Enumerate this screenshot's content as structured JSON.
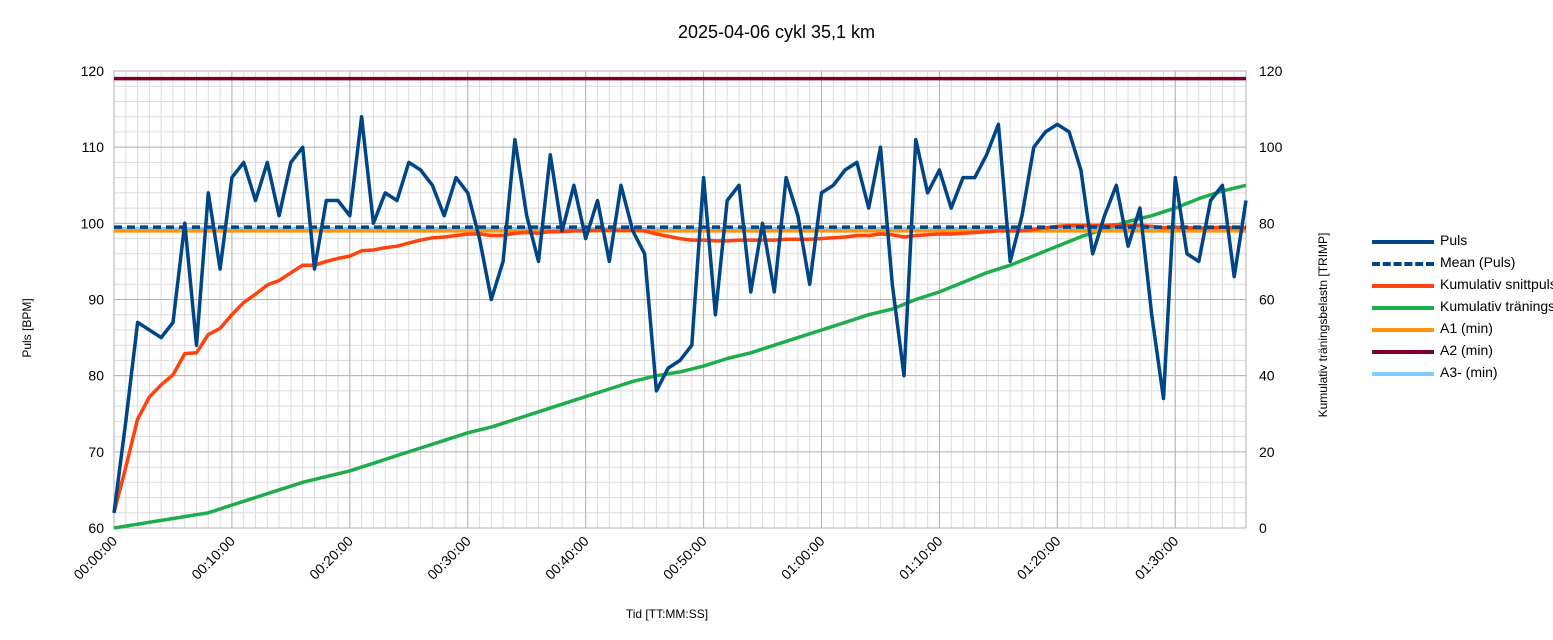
{
  "title": "2025-04-06 cykl 35,1 km",
  "chart_data": {
    "type": "line",
    "title": "2025-04-06 cykl 35,1 km",
    "xlabel": "Tid [TT:MM:SS]",
    "ylabel_left": "Puls [BPM]",
    "ylabel_right": "Kumulativ träningsbelastn [TRIMP]",
    "x_unit": "minutes",
    "xlim": [
      0,
      96
    ],
    "ylim_left": [
      60,
      120
    ],
    "ylim_right": [
      0,
      120
    ],
    "x_ticks": [
      "00:00:00",
      "00:10:00",
      "00:20:00",
      "00:30:00",
      "00:40:00",
      "00:50:00",
      "01:00:00",
      "01:10:00",
      "01:20:00",
      "01:30:00"
    ],
    "x_tick_minutes": [
      0,
      10,
      20,
      30,
      40,
      50,
      60,
      70,
      80,
      90
    ],
    "y_ticks_left": [
      60,
      70,
      80,
      90,
      100,
      110,
      120
    ],
    "y_ticks_right": [
      0,
      20,
      40,
      60,
      80,
      100,
      120
    ],
    "grid": true,
    "legend_position": "right",
    "series": [
      {
        "name": "Puls",
        "axis": "left",
        "color": "#004586",
        "style": "solid",
        "x": [
          0,
          1,
          2,
          3,
          4,
          5,
          6,
          7,
          8,
          9,
          10,
          11,
          12,
          13,
          14,
          15,
          16,
          17,
          18,
          19,
          20,
          21,
          22,
          23,
          24,
          25,
          26,
          27,
          28,
          29,
          30,
          31,
          32,
          33,
          34,
          35,
          36,
          37,
          38,
          39,
          40,
          41,
          42,
          43,
          44,
          45,
          46,
          47,
          48,
          49,
          50,
          51,
          52,
          53,
          54,
          55,
          56,
          57,
          58,
          59,
          60,
          61,
          62,
          63,
          64,
          65,
          66,
          67,
          68,
          69,
          70,
          71,
          72,
          73,
          74,
          75,
          76,
          77,
          78,
          79,
          80,
          81,
          82,
          83,
          84,
          85,
          86,
          87,
          88,
          89,
          90,
          91,
          92,
          93,
          94,
          95,
          96
        ],
        "y": [
          62,
          74,
          87,
          86,
          85,
          87,
          100,
          84,
          104,
          94,
          106,
          108,
          103,
          108,
          101,
          108,
          110,
          94,
          103,
          103,
          101,
          114,
          100,
          104,
          103,
          108,
          107,
          105,
          101,
          106,
          104,
          98,
          90,
          95,
          111,
          101,
          95,
          109,
          99,
          105,
          98,
          103,
          95,
          105,
          99,
          96,
          78,
          81,
          82,
          84,
          106,
          88,
          103,
          105,
          91,
          100,
          91,
          106,
          101,
          92,
          104,
          105,
          107,
          108,
          102,
          110,
          92,
          80,
          111,
          104,
          107,
          102,
          106,
          106,
          109,
          113,
          95,
          101,
          110,
          112,
          113,
          112,
          107,
          96,
          101,
          105,
          97,
          102,
          88,
          77,
          106,
          96,
          95,
          103,
          105,
          93,
          103
        ]
      },
      {
        "name": "Mean (Puls)",
        "axis": "left",
        "color": "#004586",
        "style": "dashed",
        "x": [
          0,
          96
        ],
        "y": [
          99.5,
          99.5
        ]
      },
      {
        "name": "Kumulativ snittpuls",
        "axis": "left",
        "color": "#ff420e",
        "style": "solid",
        "x": [
          0,
          1,
          2,
          3,
          4,
          5,
          6,
          7,
          8,
          9,
          10,
          11,
          12,
          13,
          14,
          15,
          16,
          17,
          18,
          19,
          20,
          21,
          22,
          23,
          24,
          25,
          26,
          27,
          28,
          29,
          30,
          31,
          32,
          33,
          34,
          35,
          36,
          37,
          38,
          39,
          40,
          41,
          42,
          43,
          44,
          45,
          46,
          47,
          48,
          49,
          50,
          51,
          52,
          53,
          54,
          55,
          56,
          57,
          58,
          59,
          60,
          61,
          62,
          63,
          64,
          65,
          66,
          67,
          68,
          69,
          70,
          71,
          72,
          73,
          74,
          75,
          76,
          77,
          78,
          79,
          80,
          81,
          82,
          83,
          84,
          85,
          86,
          87,
          88,
          89,
          90,
          91,
          92,
          93,
          94,
          95,
          96
        ],
        "y": [
          62,
          68,
          74.3,
          77.2,
          78.8,
          80.1,
          82.9,
          83,
          85.4,
          86.2,
          88,
          89.6,
          90.7,
          91.9,
          92.5,
          93.5,
          94.5,
          94.5,
          95,
          95.4,
          95.7,
          96.4,
          96.5,
          96.8,
          97,
          97.4,
          97.8,
          98.1,
          98.2,
          98.4,
          98.6,
          98.6,
          98.4,
          98.4,
          98.7,
          98.8,
          98.7,
          98.9,
          98.9,
          99,
          99,
          99.1,
          99.1,
          99.1,
          99.1,
          99,
          98.6,
          98.3,
          98,
          97.8,
          97.8,
          97.7,
          97.7,
          97.8,
          97.8,
          97.8,
          97.8,
          97.9,
          97.9,
          97.9,
          98,
          98.1,
          98.2,
          98.4,
          98.4,
          98.6,
          98.5,
          98.2,
          98.4,
          98.5,
          98.6,
          98.6,
          98.7,
          98.8,
          98.9,
          99,
          99,
          99,
          99.2,
          99.4,
          99.6,
          99.7,
          99.7,
          99.7,
          99.7,
          99.8,
          99.7,
          99.7,
          99.6,
          99.4,
          99.5,
          99.4,
          99.4,
          99.4,
          99.5,
          99.4,
          99.4
        ]
      },
      {
        "name": "Kumulativ träningsbelastn",
        "axis": "right",
        "color": "#1dad4a",
        "style": "solid",
        "x": [
          0,
          2,
          4,
          6,
          7,
          8,
          10,
          12,
          14,
          16,
          18,
          20,
          21,
          22,
          24,
          26,
          28,
          30,
          32,
          34,
          36,
          38,
          40,
          42,
          44,
          46,
          48,
          50,
          52,
          54,
          56,
          58,
          60,
          62,
          64,
          66,
          68,
          70,
          72,
          74,
          76,
          78,
          80,
          82,
          84,
          86,
          88,
          90,
          92,
          94,
          96
        ],
        "y": [
          0,
          1,
          2,
          3,
          3.5,
          4,
          6,
          8,
          10,
          12,
          13.5,
          15,
          16,
          17,
          19,
          21,
          23,
          25,
          26.5,
          28.5,
          30.5,
          32.5,
          34.5,
          36.5,
          38.5,
          40,
          41,
          42.5,
          44.5,
          46,
          48,
          50,
          52,
          54,
          56,
          57.5,
          60,
          62,
          64.5,
          67,
          69,
          71.5,
          74,
          76.5,
          78.5,
          80.5,
          82,
          84,
          86.5,
          88.5,
          90
        ]
      },
      {
        "name": "A1 (min)",
        "axis": "left",
        "color": "#ff950e",
        "style": "solid",
        "x": [
          0,
          96
        ],
        "y": [
          99,
          99
        ]
      },
      {
        "name": "A2 (min)",
        "axis": "left",
        "color": "#7e0021",
        "style": "solid",
        "x": [
          0,
          96
        ],
        "y": [
          119,
          119
        ]
      },
      {
        "name": "A3- (min)",
        "axis": "left",
        "color": "#83caff",
        "style": "solid",
        "x": [
          0,
          96
        ],
        "y": [
          99.3,
          99.3
        ]
      }
    ]
  },
  "legend": {
    "items": [
      {
        "label": "Puls",
        "color": "#004586",
        "style": "solid"
      },
      {
        "label": "Mean (Puls)",
        "color": "#004586",
        "style": "dashed"
      },
      {
        "label": "Kumulativ snittpuls",
        "color": "#ff420e",
        "style": "solid"
      },
      {
        "label": "Kumulativ träningsbelastn",
        "color": "#1dad4a",
        "style": "solid"
      },
      {
        "label": "A1 (min)",
        "color": "#ff950e",
        "style": "solid"
      },
      {
        "label": "A2 (min)",
        "color": "#7e0021",
        "style": "solid"
      },
      {
        "label": "A3- (min)",
        "color": "#83caff",
        "style": "solid"
      }
    ]
  }
}
